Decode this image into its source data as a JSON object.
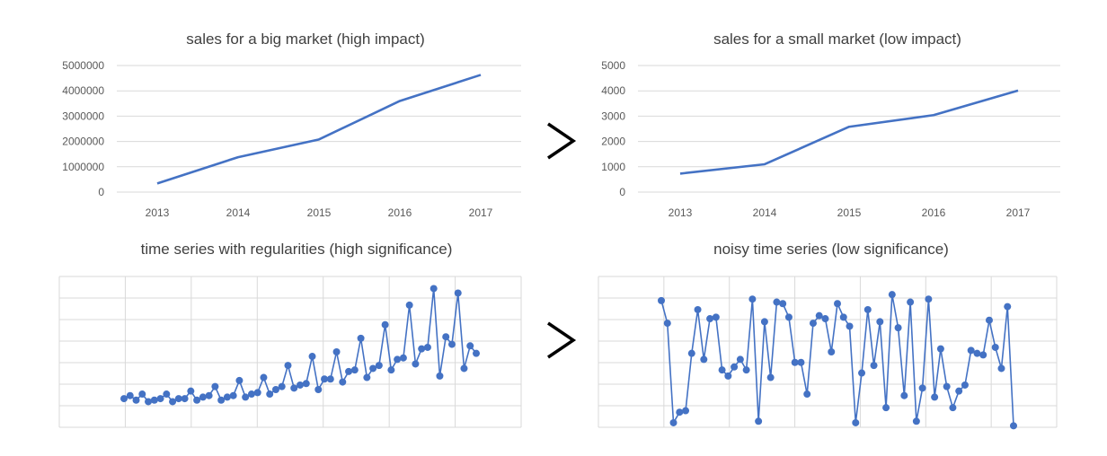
{
  "colors": {
    "series": "#4472c4",
    "grid": "#d9d9d9",
    "text": "#595959",
    "arrow": "#000000"
  },
  "comparison_icon": "greater-than-icon",
  "chart_data": [
    {
      "type": "line",
      "title": "sales for a big market (high impact)",
      "categories": [
        "2013",
        "2014",
        "2015",
        "2016",
        "2017"
      ],
      "values": [
        340000,
        1380000,
        2080000,
        3600000,
        4630000
      ],
      "yticks": [
        "0",
        "1000000",
        "2000000",
        "3000000",
        "4000000",
        "5000000"
      ],
      "ylim": [
        0,
        5000000
      ],
      "grid": "horizontal",
      "markers": false
    },
    {
      "type": "line",
      "title": "sales for a small market (low impact)",
      "categories": [
        "2013",
        "2014",
        "2015",
        "2016",
        "2017"
      ],
      "values": [
        730,
        1100,
        2580,
        3040,
        4010
      ],
      "yticks": [
        "0",
        "1000",
        "2000",
        "3000",
        "4000",
        "5000"
      ],
      "ylim": [
        0,
        5000
      ],
      "grid": "horizontal",
      "markers": false
    },
    {
      "type": "line",
      "title": "time series with regularities (high significance)",
      "ylim": [
        0,
        10
      ],
      "grid": "both",
      "markers": true,
      "axis_labels": false,
      "values": [
        1.9,
        2.1,
        1.8,
        2.2,
        1.7,
        1.8,
        1.9,
        2.2,
        1.7,
        1.9,
        1.9,
        2.4,
        1.8,
        2.0,
        2.1,
        2.7,
        1.8,
        2.0,
        2.1,
        3.1,
        2.0,
        2.2,
        2.3,
        3.3,
        2.2,
        2.5,
        2.7,
        4.1,
        2.6,
        2.8,
        2.9,
        4.7,
        2.5,
        3.2,
        3.2,
        5.0,
        3.0,
        3.7,
        3.8,
        5.9,
        3.3,
        3.9,
        4.1,
        6.8,
        3.8,
        4.5,
        4.6,
        8.1,
        4.2,
        5.2,
        5.3,
        9.2,
        3.4,
        6.0,
        5.5,
        8.9,
        3.9,
        5.4,
        4.9
      ]
    },
    {
      "type": "line",
      "title": "noisy time series (low significance)",
      "ylim": [
        0,
        10
      ],
      "grid": "both",
      "markers": true,
      "axis_labels": false,
      "values": [
        8.4,
        6.9,
        0.3,
        1.0,
        1.1,
        4.9,
        7.8,
        4.5,
        7.2,
        7.3,
        3.8,
        3.4,
        4.0,
        4.5,
        3.8,
        8.5,
        0.4,
        7.0,
        3.3,
        8.3,
        8.2,
        7.3,
        4.3,
        4.3,
        2.2,
        6.9,
        7.4,
        7.2,
        5.0,
        8.2,
        7.3,
        6.7,
        0.3,
        3.6,
        7.8,
        4.1,
        7.0,
        1.3,
        8.8,
        6.6,
        2.1,
        8.3,
        0.4,
        2.6,
        8.5,
        2.0,
        5.2,
        2.7,
        1.3,
        2.4,
        2.8,
        5.1,
        4.9,
        4.8,
        7.1,
        5.3,
        3.9,
        8.0,
        0.1
      ]
    }
  ]
}
